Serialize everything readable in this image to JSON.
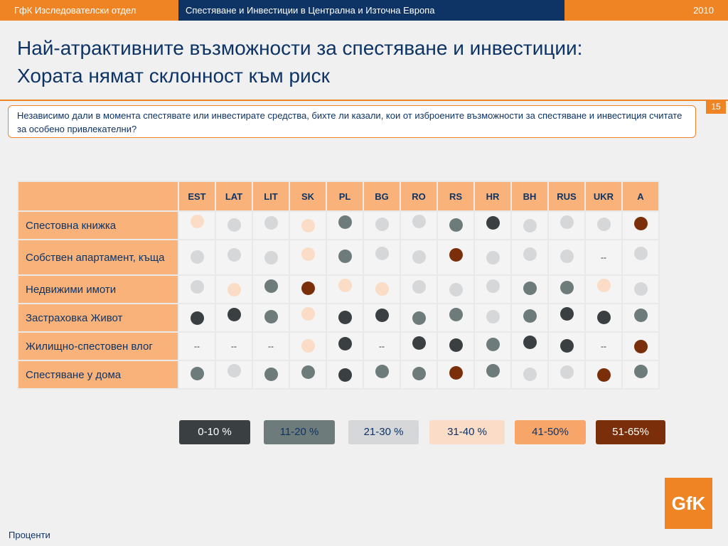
{
  "header": {
    "left": "ГфК Изследователски отдел",
    "center": "Спестяване и Инвестиции в Централна и Източна Европа",
    "year": "2010"
  },
  "title": {
    "line1": "Най-атрактивните възможности за спестяване и инвестиции:",
    "line2": "Хората нямат склонност към риск"
  },
  "page_number": "15",
  "question": "Независимо дали в момента спестявате или инвестирате средства, бихте ли казали, кои от изброените възможности за спестяване и инвестиция считате за особено привлекателни?",
  "table": {
    "columns": [
      "EST",
      "LAT",
      "LIT",
      "SK",
      "PL",
      "BG",
      "RO",
      "RS",
      "HR",
      "BH",
      "RUS",
      "UKR",
      "A"
    ],
    "rows": [
      {
        "label": "Спестовна книжка",
        "cells": [
          "31-40 %",
          "21-30 %",
          "21-30 %",
          "31-40 %",
          "11-20 %",
          "21-30 %",
          "21-30 %",
          "11-20 %",
          "0-10 %",
          "21-30 %",
          "21-30 %",
          "21-30 %",
          "51-65%"
        ]
      },
      {
        "label": "Собствен апартамент, къща",
        "cells": [
          "21-30 %",
          "21-30 %",
          "21-30 %",
          "31-40 %",
          "11-20 %",
          "21-30 %",
          "21-30 %",
          "51-65%",
          "21-30 %",
          "21-30 %",
          "21-30 %",
          "--",
          "21-30 %"
        ]
      },
      {
        "label": "Недвижими имоти",
        "cells": [
          "21-30 %",
          "31-40 %",
          "11-20 %",
          "51-65%",
          "31-40 %",
          "31-40 %",
          "21-30 %",
          "21-30 %",
          "21-30 %",
          "11-20 %",
          "11-20 %",
          "31-40 %",
          "21-30 %"
        ]
      },
      {
        "label": "Застраховка Живот",
        "cells": [
          "0-10 %",
          "0-10 %",
          "11-20 %",
          "31-40 %",
          "0-10 %",
          "0-10 %",
          "11-20 %",
          "11-20 %",
          "21-30 %",
          "11-20 %",
          "0-10 %",
          "0-10 %",
          "11-20 %"
        ]
      },
      {
        "label": "Жилищно-спестовен влог",
        "cells": [
          "--",
          "--",
          "--",
          "31-40 %",
          "0-10 %",
          "--",
          "0-10 %",
          "0-10 %",
          "11-20 %",
          "0-10 %",
          "0-10 %",
          "--",
          "51-65%"
        ]
      },
      {
        "label": "Спестяване у дома",
        "cells": [
          "11-20 %",
          "21-30 %",
          "11-20 %",
          "11-20 %",
          "0-10 %",
          "11-20 %",
          "11-20 %",
          "51-65%",
          "11-20 %",
          "21-30 %",
          "21-30 %",
          "51-65%",
          "11-20 %"
        ]
      }
    ]
  },
  "legend": [
    {
      "label": "0-10 %",
      "color": "#3a3f42",
      "text": "#ffffff"
    },
    {
      "label": "11-20 %",
      "color": "#6e7b7b",
      "text": "#0e3466"
    },
    {
      "label": "21-30 %",
      "color": "#d5d7d8",
      "text": "#0e3466"
    },
    {
      "label": "31-40 %",
      "color": "#fbdcc6",
      "text": "#0e3466"
    },
    {
      "label": "41-50%",
      "color": "#f8a56a",
      "text": "#0e3466"
    },
    {
      "label": "51-65%",
      "color": "#7a2f0a",
      "text": "#ffffff"
    }
  ],
  "logo": "GfK",
  "footnote": "Проценти"
}
